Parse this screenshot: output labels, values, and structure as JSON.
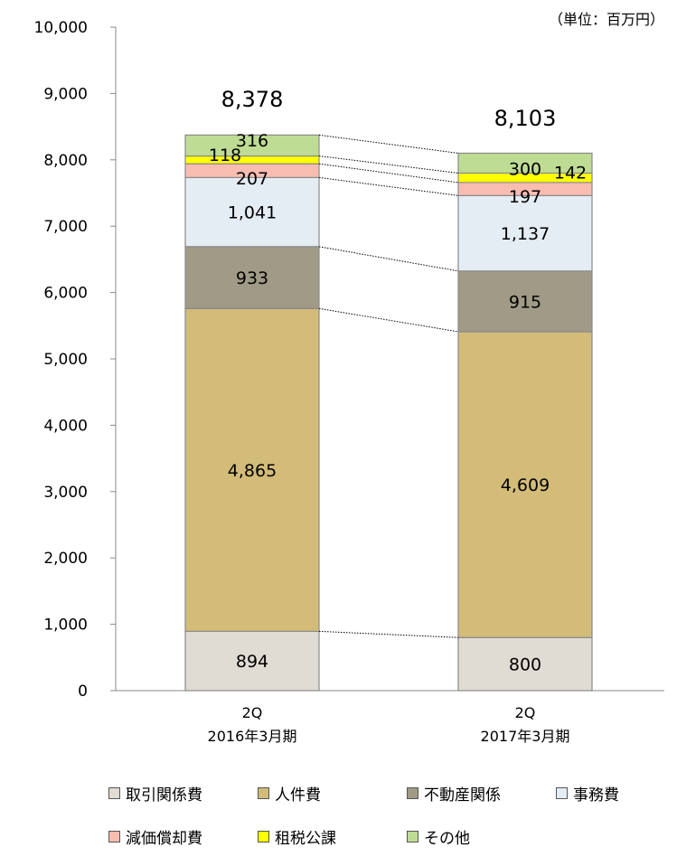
{
  "unit_label": "（単位：百万円）",
  "colors": {
    "取引関係費": "#e0dcd4",
    "人件費": "#d2bc78",
    "不動産関係": "#a09a86",
    "事務費": "#e4ecf4",
    "減価償却費": "#f9bcb0",
    "租税公課": "#ffff00",
    "その他": "#bedc94"
  },
  "chart_data": {
    "type": "bar",
    "stacked": true,
    "categories": [
      {
        "line1": "2Q",
        "line2": "2016年3月期"
      },
      {
        "line1": "2Q",
        "line2": "2017年3月期"
      }
    ],
    "series": [
      {
        "name": "取引関係費",
        "values": [
          894,
          800
        ]
      },
      {
        "name": "人件費",
        "values": [
          4865,
          4609
        ]
      },
      {
        "name": "不動産関係",
        "values": [
          933,
          915
        ]
      },
      {
        "name": "事務費",
        "values": [
          1041,
          1137
        ]
      },
      {
        "name": "減価償却費",
        "values": [
          207,
          197
        ]
      },
      {
        "name": "租税公課",
        "values": [
          118,
          142
        ]
      },
      {
        "name": "その他",
        "values": [
          316,
          300
        ]
      }
    ],
    "data_labels": [
      [
        "894",
        "4,865",
        "933",
        "1,041",
        "207",
        "118",
        "316"
      ],
      [
        "800",
        "4,609",
        "915",
        "1,137",
        "197",
        "142",
        "300"
      ]
    ],
    "totals": [
      "8,378",
      "8,103"
    ],
    "ylim": [
      0,
      10000
    ],
    "yticks": [
      0,
      1000,
      2000,
      3000,
      4000,
      5000,
      6000,
      7000,
      8000,
      9000,
      10000
    ],
    "ytick_labels": [
      "0",
      "1,000",
      "2,000",
      "3,000",
      "4,000",
      "5,000",
      "6,000",
      "7,000",
      "8,000",
      "9,000",
      "10,000"
    ],
    "connector_lines": "dotted",
    "legend_position": "bottom"
  },
  "legend_rows": [
    [
      "取引関係費",
      "人件費",
      "不動産関係",
      "事務費"
    ],
    [
      "減価償却費",
      "租税公課",
      "その他"
    ]
  ]
}
